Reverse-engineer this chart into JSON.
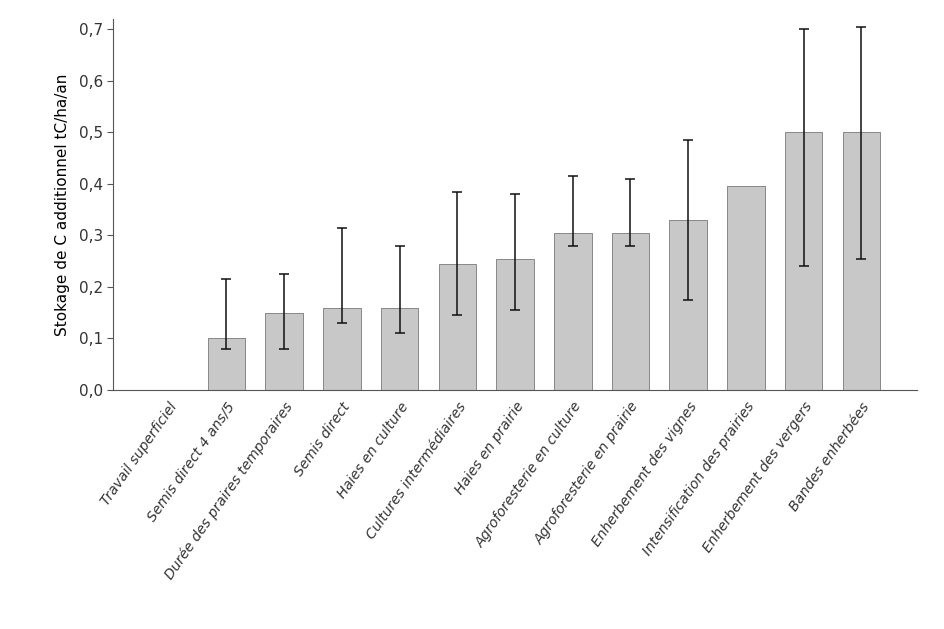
{
  "categories": [
    "Travail superficiel",
    "Semis direct 4 ans/5",
    "Durée des praires temporaires",
    "Semis direct",
    "Haies en culture",
    "Cultures intermédiaires",
    "Haies en prairie",
    "Agroforesterie en culture",
    "Agroforesterie en prairie",
    "Enherbement des vignes",
    "Intensification des prairies",
    "Enherbement des vergers",
    "Bandes enherbées"
  ],
  "values": [
    0.0,
    0.1,
    0.15,
    0.16,
    0.16,
    0.245,
    0.255,
    0.305,
    0.305,
    0.33,
    0.395,
    0.5,
    0.5
  ],
  "err_low": [
    0.0,
    0.02,
    0.07,
    0.03,
    0.05,
    0.1,
    0.1,
    0.025,
    0.025,
    0.155,
    0.0,
    0.26,
    0.245
  ],
  "err_high": [
    0.0,
    0.115,
    0.075,
    0.155,
    0.12,
    0.14,
    0.125,
    0.11,
    0.105,
    0.155,
    0.0,
    0.2,
    0.205
  ],
  "bar_color": "#c8c8c8",
  "bar_edge_color": "#888888",
  "error_color": "#111111",
  "ylabel": "Stokage de C additionnel tC/ha/an",
  "ylim": [
    0.0,
    0.72
  ],
  "yticks": [
    0.0,
    0.1,
    0.2,
    0.3,
    0.4,
    0.5,
    0.6,
    0.7
  ],
  "ytick_labels": [
    "0,0",
    "0,1",
    "0,2",
    "0,3",
    "0,4",
    "0,5",
    "0,6",
    "0,7"
  ],
  "background_color": "#ffffff",
  "bar_width": 0.65
}
